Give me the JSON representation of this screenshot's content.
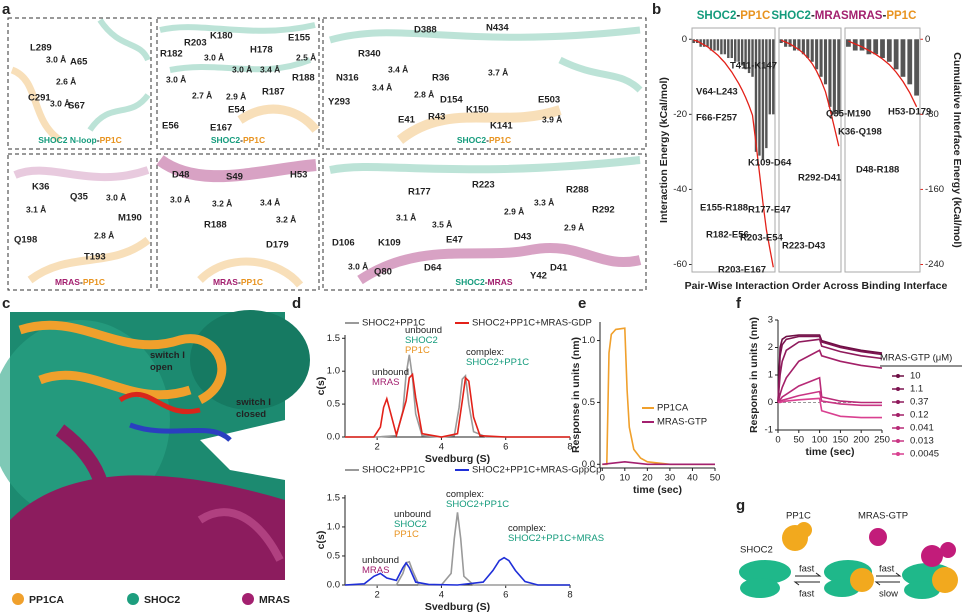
{
  "panels": {
    "letters": [
      "a",
      "b",
      "c",
      "d",
      "e",
      "f",
      "g"
    ]
  },
  "panel_a": {
    "boxes": [
      {
        "caption": [
          "SHOC2 N-loop",
          "-",
          "PP1C"
        ],
        "caption_colors": [
          "#149b7c",
          "#222",
          "#e8931f"
        ],
        "labels": [
          "L289",
          "A65",
          "C291",
          "S67",
          "3.0 Å",
          "2.6 Å",
          "3.0 Å"
        ]
      },
      {
        "caption": [
          "SHOC2",
          "-",
          "PP1C"
        ],
        "caption_colors": [
          "#149b7c",
          "#222",
          "#e8931f"
        ],
        "labels": [
          "R182",
          "R203",
          "K180",
          "H178",
          "E155",
          "R188",
          "R187",
          "E54",
          "E56",
          "E167",
          "3.0 Å",
          "3.0 Å",
          "2.7 Å",
          "3.0 Å",
          "3.4 Å",
          "2.9 Å",
          "2.5 Å"
        ]
      },
      {
        "caption": [
          "SHOC2",
          "-",
          "PP1C"
        ],
        "caption_colors": [
          "#149b7c",
          "#222",
          "#e8931f"
        ],
        "labels": [
          "D388",
          "N434",
          "R340",
          "N316",
          "Y293",
          "R36",
          "D154",
          "E41",
          "R43",
          "K150",
          "E503",
          "K141",
          "3.4 Å",
          "3.4 Å",
          "2.8 Å",
          "3.7 Å",
          "3.9 Å"
        ]
      },
      {
        "caption": [
          "MRAS",
          "-",
          "PP1C"
        ],
        "caption_colors": [
          "#a3206f",
          "#222",
          "#e8931f"
        ],
        "labels": [
          "K36",
          "Q35",
          "M190",
          "Q198",
          "T193",
          "3.1 Å",
          "3.0 Å",
          "2.8 Å"
        ]
      },
      {
        "caption": [
          "MRAS",
          "-",
          "PP1C"
        ],
        "caption_colors": [
          "#a3206f",
          "#222",
          "#e8931f"
        ],
        "labels": [
          "D48",
          "S49",
          "H53",
          "R188",
          "D179",
          "3.0 Å",
          "3.2 Å",
          "3.4 Å",
          "3.2 Å"
        ]
      },
      {
        "caption": [
          "SHOC2",
          "-",
          "MRAS"
        ],
        "caption_colors": [
          "#149b7c",
          "#222",
          "#a3206f"
        ],
        "labels": [
          "R177",
          "R223",
          "R288",
          "R292",
          "D106",
          "K109",
          "E47",
          "D43",
          "D41",
          "Y42",
          "Q80",
          "D64",
          "3.0 Å",
          "3.1 Å",
          "3.5 Å",
          "2.9 Å",
          "3.3 Å",
          "2.9 Å"
        ]
      }
    ]
  },
  "panel_c": {
    "switch_open": [
      "switch I",
      "open"
    ],
    "switch_closed": [
      "switch I",
      "closed"
    ],
    "legend": [
      "PP1CA",
      "SHOC2",
      "MRAS"
    ],
    "legend_colors": [
      "#f0a02c",
      "#1d9e7e",
      "#a3206f"
    ]
  },
  "panel_g": {
    "labels": [
      "PP1C",
      "MRAS-GTP",
      "SHOC2"
    ],
    "label_colors": [
      "#e8931f",
      "#a3206f",
      "#1d9e7e"
    ],
    "rates": [
      "fast",
      "fast",
      "fast",
      "slow"
    ]
  },
  "chart_data": [
    {
      "type": "bar",
      "ylabel": "Interaction Energy (kCal/mol)",
      "y2label": "Cumulative Interface Energy (kCal/mol)",
      "xlabel": "Pair-Wise Interaction Order Across Binding Interface",
      "ylim": [
        -62,
        3
      ],
      "yticks": [
        0,
        -20,
        -40,
        -60
      ],
      "y2lim": [
        -248,
        12
      ],
      "y2ticks": [
        0,
        -80,
        -160,
        -240
      ],
      "color": "#555555",
      "line_color": "#e32119",
      "groups": [
        {
          "title": [
            "SHOC2",
            "-",
            "PP1C"
          ],
          "title_colors": [
            "#149b7c",
            "#222",
            "#e8931f"
          ],
          "values": [
            -1,
            -1,
            -2,
            -2,
            -2,
            -3,
            -3,
            -3,
            -4,
            -4,
            -5,
            -5,
            -6,
            -6,
            -7,
            -8,
            -9,
            -10,
            -30,
            -31,
            -32,
            -29,
            -20,
            -20
          ],
          "cumulative": [
            -1,
            -2,
            -4,
            -6,
            -8,
            -11,
            -14,
            -17,
            -21,
            -25,
            -30,
            -35,
            -41,
            -47,
            -54,
            -62,
            -71,
            -81,
            -111,
            -142,
            -174,
            -203,
            -223,
            -243
          ],
          "annotations": [
            "V64-L243",
            "F66-F257",
            "T411-K147",
            "E155-R188",
            "R182-E56",
            "R203-E54",
            "R203-E167"
          ]
        },
        {
          "title": [
            "SHOC2",
            "-",
            "MRAS"
          ],
          "title_colors": [
            "#149b7c",
            "#222",
            "#a3206f"
          ],
          "values": [
            -1,
            -2,
            -2,
            -3,
            -3,
            -4,
            -5,
            -6,
            -8,
            -10,
            -12,
            -18,
            -20,
            -20
          ],
          "cumulative": [
            -1,
            -3,
            -5,
            -8,
            -11,
            -15,
            -20,
            -26,
            -34,
            -44,
            -56,
            -74,
            -94,
            -114
          ],
          "annotations": [
            "K109-D64",
            "R292-D41",
            "R177-E47",
            "R223-D43"
          ]
        },
        {
          "title": [
            "MRAS",
            "-",
            "PP1C"
          ],
          "title_colors": [
            "#a3206f",
            "#222",
            "#e8931f"
          ],
          "values": [
            -2,
            -3,
            -3,
            -4,
            -4,
            -5,
            -6,
            -8,
            -10,
            -12,
            -15
          ],
          "cumulative": [
            -2,
            -5,
            -8,
            -12,
            -16,
            -21,
            -27,
            -35,
            -45,
            -57,
            -72
          ],
          "annotations": [
            "Q35-M190",
            "H53-D179",
            "K36-Q198",
            "D48-R188"
          ]
        }
      ]
    },
    {
      "type": "line",
      "xlabel": "Svedburg (S)",
      "ylabel": "c(s)",
      "xlim": [
        1,
        8
      ],
      "xticks": [
        2,
        4,
        6,
        8
      ],
      "ylim": [
        0,
        1.55
      ],
      "yticks": [
        {
          "value": 0,
          "label": "0.0"
        },
        0.5,
        {
          "value": 1,
          "label": "1.0"
        },
        1.5
      ],
      "series": [
        {
          "name": "SHOC2+PP1C",
          "color": "#9a9a9a",
          "x": [
            1,
            2,
            2.6,
            2.8,
            2.9,
            3.0,
            3.1,
            3.2,
            3.4,
            4.0,
            4.4,
            4.55,
            4.65,
            4.75,
            4.85,
            5.0,
            5.4,
            6,
            7,
            8
          ],
          "values": [
            0,
            0,
            0.02,
            0.4,
            0.95,
            1.25,
            0.9,
            0.35,
            0.02,
            0,
            0.02,
            0.45,
            0.88,
            0.93,
            0.5,
            0.08,
            0,
            0,
            0,
            0
          ]
        },
        {
          "name": "SHOC2+PP1C+MRAS-GDP",
          "color": "#e32119",
          "x": [
            1,
            1.9,
            2.1,
            2.2,
            2.3,
            2.4,
            2.6,
            2.9,
            3.0,
            3.1,
            3.2,
            3.4,
            4.0,
            4.5,
            4.65,
            4.75,
            4.85,
            5.0,
            5.2,
            6,
            8
          ],
          "values": [
            0,
            0,
            0.15,
            0.45,
            0.58,
            0.4,
            0.03,
            0.55,
            0.9,
            0.95,
            0.6,
            0.05,
            0,
            0.05,
            0.55,
            0.9,
            0.85,
            0.3,
            0.02,
            0,
            0
          ]
        }
      ],
      "annotations": [
        {
          "lines": [
            "unbound",
            "MRAS"
          ],
          "colors": [
            "#222",
            "#a3206f"
          ]
        },
        {
          "lines": [
            "unbound",
            "SHOC2",
            "PP1C"
          ],
          "colors": [
            "#222",
            "#149b7c",
            "#e8931f"
          ]
        },
        {
          "lines": [
            "complex:",
            "SHOC2+PP1C"
          ],
          "colors": [
            "#222",
            "#149b7c"
          ]
        }
      ]
    },
    {
      "type": "line",
      "xlabel": "Svedburg (S)",
      "ylabel": "c(s)",
      "xlim": [
        1,
        8
      ],
      "xticks": [
        2,
        4,
        6,
        8
      ],
      "ylim": [
        0,
        1.55
      ],
      "yticks": [
        {
          "value": 0,
          "label": "0.0"
        },
        0.5,
        {
          "value": 1,
          "label": "1.0"
        },
        1.5
      ],
      "series": [
        {
          "name": "SHOC2+PP1C",
          "color": "#9a9a9a",
          "x": [
            1,
            2.6,
            2.8,
            2.9,
            3.0,
            3.1,
            3.3,
            4.0,
            4.3,
            4.4,
            4.5,
            4.6,
            4.7,
            5.0,
            8
          ],
          "values": [
            0,
            0,
            0.2,
            0.38,
            0.4,
            0.25,
            0,
            0,
            0.2,
            0.8,
            1.25,
            0.8,
            0.15,
            0,
            0
          ]
        },
        {
          "name": "SHOC2+PP1C+MRAS-GppCp",
          "color": "#1f2fd8",
          "x": [
            1,
            1.6,
            1.9,
            2.1,
            2.3,
            2.6,
            2.8,
            2.9,
            3.0,
            3.2,
            3.6,
            4.5,
            5.3,
            5.6,
            5.8,
            5.95,
            6.1,
            6.3,
            6.6,
            7,
            8
          ],
          "values": [
            0,
            0.02,
            0.15,
            0.2,
            0.12,
            0.08,
            0.3,
            0.38,
            0.3,
            0.05,
            0.01,
            0,
            0.05,
            0.25,
            0.42,
            0.47,
            0.42,
            0.25,
            0.06,
            0,
            0
          ]
        }
      ],
      "annotations": [
        {
          "lines": [
            "unbound",
            "MRAS"
          ],
          "colors": [
            "#222",
            "#a3206f"
          ]
        },
        {
          "lines": [
            "unbound",
            "SHOC2",
            "PP1C"
          ],
          "colors": [
            "#222",
            "#149b7c",
            "#e8931f"
          ]
        },
        {
          "lines": [
            "complex:",
            "SHOC2+PP1C"
          ],
          "colors": [
            "#222",
            "#149b7c"
          ]
        },
        {
          "lines": [
            "complex:",
            "SHOC2+PP1C+MRAS"
          ],
          "colors": [
            "#222",
            "#149b7c"
          ]
        }
      ]
    },
    {
      "type": "line",
      "xlabel": "time (sec)",
      "ylabel": "Response in units (nm)",
      "xlim": [
        -1,
        50
      ],
      "xticks": [
        0,
        10,
        20,
        30,
        40,
        50
      ],
      "ylim": [
        -0.03,
        1.15
      ],
      "yticks": [
        {
          "value": 0,
          "label": "0.0"
        },
        0.5,
        {
          "value": 1,
          "label": "1.0"
        }
      ],
      "series": [
        {
          "name": "PP1CA",
          "color": "#f0a02c",
          "x": [
            0,
            2,
            3,
            4,
            6,
            10,
            11,
            12,
            14,
            17,
            20,
            25,
            30,
            40,
            50
          ],
          "values": [
            0,
            0,
            0.9,
            1.05,
            1.09,
            1.1,
            0.6,
            0.3,
            0.12,
            0.05,
            0.02,
            0.01,
            0,
            0,
            0
          ]
        },
        {
          "name": "MRAS-GTP",
          "color": "#a3206f",
          "x": [
            0,
            10,
            20,
            50
          ],
          "values": [
            0,
            0.02,
            0,
            0
          ]
        }
      ]
    },
    {
      "type": "line",
      "xlabel": "time (sec)",
      "ylabel": "Response in units (nm)",
      "legend_title": "MRAS-GTP (μM)",
      "zero_line": true,
      "xlim": [
        0,
        250
      ],
      "xticks": [
        0,
        50,
        100,
        150,
        200,
        250
      ],
      "ylim": [
        -1,
        3
      ],
      "yticks": [
        -1,
        0,
        1,
        2,
        3
      ],
      "x": [
        0,
        5,
        10,
        20,
        50,
        100,
        105,
        150,
        200,
        250
      ],
      "series": [
        {
          "name": "10",
          "color": "#6e0f44",
          "values": [
            0,
            2.0,
            2.3,
            2.4,
            2.45,
            2.45,
            2.25,
            2.05,
            1.9,
            1.8
          ]
        },
        {
          "name": "1.1",
          "color": "#7d1350",
          "values": [
            0,
            1.7,
            2.1,
            2.3,
            2.4,
            2.4,
            2.2,
            2.0,
            1.85,
            1.75
          ]
        },
        {
          "name": "0.37",
          "color": "#8f1a5c",
          "values": [
            0,
            1.0,
            1.5,
            1.9,
            2.2,
            2.3,
            2.05,
            1.85,
            1.7,
            1.6
          ]
        },
        {
          "name": "0.12",
          "color": "#a32068",
          "values": [
            0,
            0.3,
            0.55,
            0.9,
            1.5,
            1.9,
            1.7,
            1.5,
            1.35,
            1.25
          ]
        },
        {
          "name": "0.041",
          "color": "#b82a77",
          "values": [
            0,
            0.1,
            0.2,
            0.3,
            0.6,
            0.9,
            0.2,
            0.05,
            0,
            0
          ]
        },
        {
          "name": "0.013",
          "color": "#c93584",
          "values": [
            0,
            0.05,
            0.08,
            0.12,
            0.25,
            0.4,
            0.05,
            -0.05,
            -0.1,
            -0.1
          ]
        },
        {
          "name": "0.0045",
          "color": "#d94090",
          "values": [
            0,
            0,
            0.02,
            0.05,
            0.1,
            0.15,
            -0.3,
            -0.5,
            -0.55,
            -0.55
          ]
        }
      ]
    }
  ]
}
